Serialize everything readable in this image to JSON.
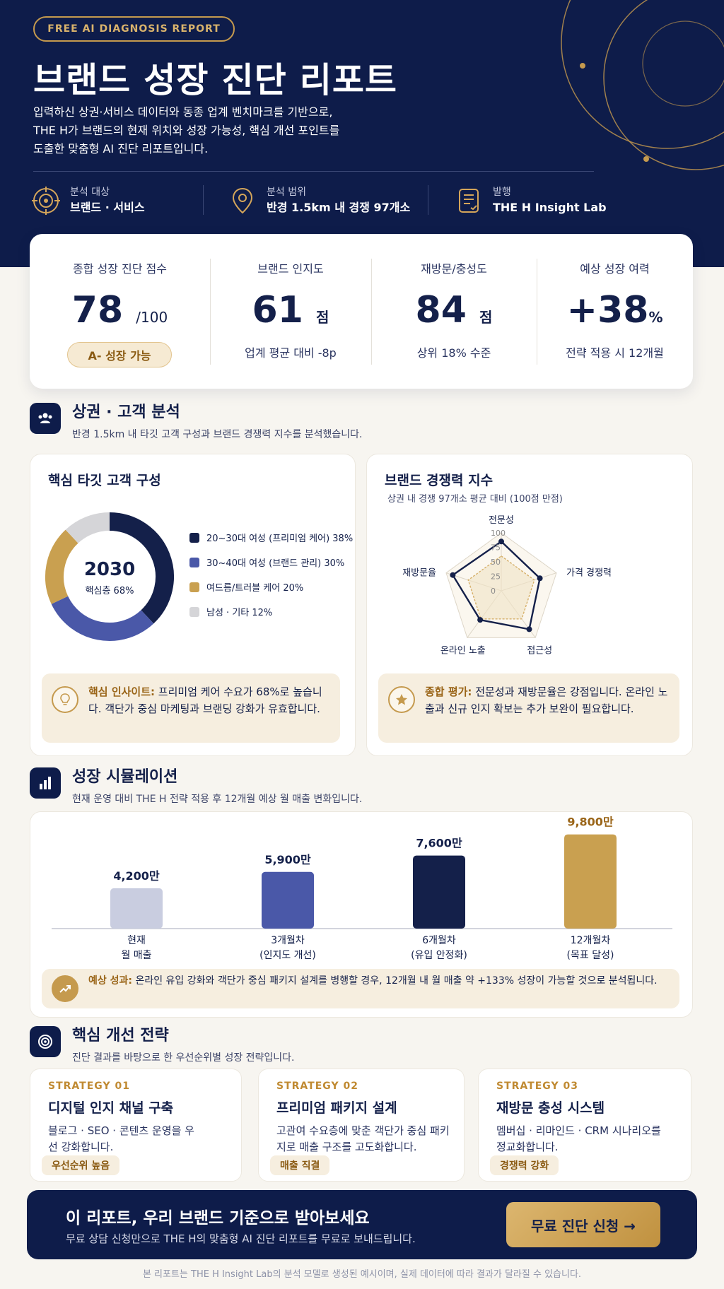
{
  "hero": {
    "badge": "FREE AI DIAGNOSIS REPORT",
    "title": "브랜드 성장 진단 리포트",
    "desc_lines": [
      "입력하신 상권·서비스 데이터와 동종 업계 벤치마크를 기반으로,",
      "THE H가 브랜드의 현재 위치와 성장 가능성, 핵심 개선 포인트를",
      "도출한 맞춤형 AI 진단 리포트입니다."
    ],
    "meta": [
      {
        "label": "분석 대상",
        "value": "브랜드 · 서비스",
        "icon": "target-icon"
      },
      {
        "label": "분석 범위",
        "value": "반경 1.5km 내 경쟁 97개소",
        "icon": "location-pin-icon"
      },
      {
        "label": "발행",
        "value": "THE H Insight Lab",
        "icon": "document-icon"
      }
    ]
  },
  "scores": [
    {
      "label": "종합 성장 진단 점수",
      "value": "78",
      "unit": "/100",
      "pill": "A-  성장 가능"
    },
    {
      "label": "브랜드 인지도",
      "value": "61",
      "unit": "점",
      "sub": "업계 평균 대비 -8p"
    },
    {
      "label": "재방문/충성도",
      "value": "84",
      "unit": "점",
      "sub": "상위 18% 수준"
    },
    {
      "label": "예상 성장 여력",
      "value": "+38",
      "unit": "%",
      "sub": "전략 적용 시 12개월"
    }
  ],
  "section_market": {
    "title": "상권 · 고객 분석",
    "sub": "반경 1.5km 내 타깃 고객 구성과 브랜드 경쟁력 지수를 분석했습니다."
  },
  "donut_card": {
    "title": "핵심 타깃 고객 구성",
    "center_value": "2030",
    "center_label": "핵심층 68%",
    "legend": [
      {
        "label": "20~30대 여성 (프리미엄 케어) 38%",
        "value": 38,
        "color": "#14204a"
      },
      {
        "label": "30~40대 여성 (브랜드 관리) 30%",
        "value": 30,
        "color": "#4a58a8"
      },
      {
        "label": "여드름/트러블 케어 20%",
        "value": 20,
        "color": "#c9a050"
      },
      {
        "label": "남성 · 기타  12%",
        "value": 12,
        "color": "#d5d5d8"
      }
    ],
    "insight_key": "핵심 인사이트:",
    "insight_text": " 프리미엄 케어 수요가 68%로 높습니다. 객단가 중심 마케팅과 브랜딩 강화가 유효합니다.",
    "insight_icon": "lightbulb-icon"
  },
  "radar_card": {
    "title": "브랜드 경쟁력 지수",
    "sub": "상권 내 경쟁 97개소 평균 대비 (100점 만점)",
    "axes": [
      "전문성",
      "가격 경쟁력",
      "접근성",
      "온라인 노출",
      "재방문율"
    ],
    "ticks": [
      "0",
      "25",
      "50",
      "75",
      "100"
    ],
    "brand_values": [
      85,
      70,
      82,
      62,
      88
    ],
    "average_values": [
      60,
      60,
      60,
      60,
      60
    ],
    "insight_key": "종합 평가:",
    "insight_text": " 전문성과 재방문율은 강점입니다. 온라인 노출과 신규 인지 확보는 추가 보완이 필요합니다.",
    "insight_icon": "star-icon"
  },
  "section_growth": {
    "title": "성장 시뮬레이션",
    "sub": "현재 운영 대비 THE H 전략 적용 후 12개월 예상 월 매출 변화입니다."
  },
  "chart_data": {
    "type": "bar",
    "categories": [
      "현재\n월 매출",
      "3개월차\n(인지도 개선)",
      "6개월차\n(유입 안정화)",
      "12개월차\n(목표 달성)"
    ],
    "values": [
      4200,
      5900,
      7600,
      9800
    ],
    "value_labels": [
      "4,200만",
      "5,900만",
      "7,600만",
      "9,800만"
    ],
    "bar_colors": [
      "#c9cde0",
      "#4a58a8",
      "#14204a",
      "#c9a050"
    ],
    "title": "",
    "xlabel": "",
    "ylabel": "",
    "ylim": [
      0,
      10000
    ],
    "cat_line1": [
      "현재",
      "3개월차",
      "6개월차",
      "12개월차"
    ],
    "cat_line2": [
      "월 매출",
      "(인지도 개선)",
      "(유입 안정화)",
      "(목표 달성)"
    ]
  },
  "growth_note": {
    "key": "예상 성과:",
    "text": " 온라인 유입 강화와 객단가 중심 패키지 설계를 병행할 경우, 12개월 내 월 매출 약 +133% 성장이 가능할 것으로 분석됩니다.",
    "icon": "trend-up-icon"
  },
  "section_strategy": {
    "title": "핵심 개선 전략",
    "sub": "진단 결과를 바탕으로 한 우선순위별 성장 전략입니다."
  },
  "strategies": [
    {
      "kicker": "STRATEGY 01",
      "title": "디지털 인지 채널 구축",
      "desc": "블로그 · SEO · 콘텐츠 운영을 우선 강화합니다.",
      "tag": "우선순위 높음"
    },
    {
      "kicker": "STRATEGY 02",
      "title": "프리미엄 패키지 설계",
      "desc": "고관여 수요층에 맞춘 객단가 중심 패키지로 매출 구조를 고도화합니다.",
      "tag": "매출 직결"
    },
    {
      "kicker": "STRATEGY 03",
      "title": "재방문 충성 시스템",
      "desc": "멤버십 · 리마인드 · CRM 시나리오를 정교화합니다.",
      "tag": "경쟁력 강화"
    }
  ],
  "cta": {
    "title": "이 리포트, 우리 브랜드 기준으로 받아보세요",
    "sub": "무료 상담 신청만으로 THE H의 맞춤형 AI 진단 리포트를 무료로 보내드립니다.",
    "button": "무료 진단 신청  →"
  },
  "footer": "본 리포트는 THE H Insight Lab의 분석 모델로 생성된 예시이며, 실제 데이터에 따라 결과가 달라질 수 있습니다.",
  "colors": {
    "navy": "#0e1c4a",
    "gold": "#c59a4e",
    "indigo": "#4a58a8",
    "bg": "#f7f5f0"
  }
}
